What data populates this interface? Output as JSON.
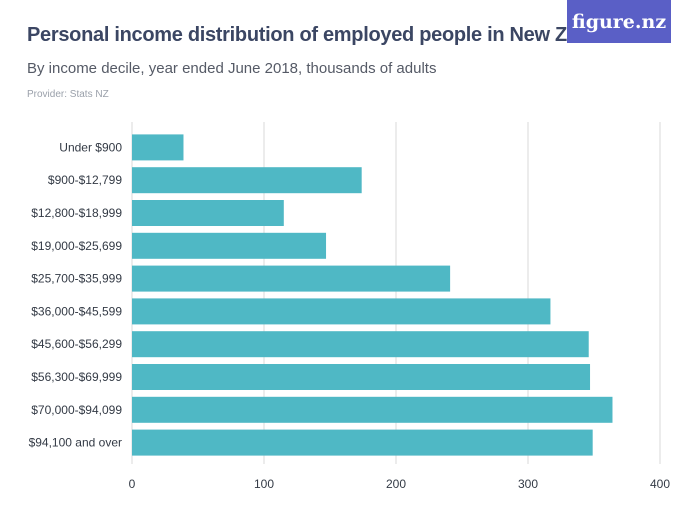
{
  "header": {
    "title": "Personal income distribution of employed people in New Zealand",
    "subtitle": "By income decile, year ended June 2018, thousands of adults",
    "provider": "Provider: Stats NZ",
    "logo_text": "figure.nz"
  },
  "colors": {
    "bar": "#4fb8c5",
    "grid": "#d9d9d9",
    "logo_bg": "#5a5fc6",
    "title": "#3b4663"
  },
  "chart_data": {
    "type": "bar",
    "orientation": "horizontal",
    "categories": [
      "Under $900",
      "$900-$12,799",
      "$12,800-$18,999",
      "$19,000-$25,699",
      "$25,700-$35,999",
      "$36,000-$45,599",
      "$45,600-$56,299",
      "$56,300-$69,999",
      "$70,000-$94,099",
      "$94,100 and over"
    ],
    "values": [
      39,
      174,
      115,
      147,
      241,
      317,
      346,
      347,
      364,
      349
    ],
    "xlim": [
      0,
      400
    ],
    "xticks": [
      0,
      100,
      200,
      300,
      400
    ],
    "grid": true,
    "title": "Personal income distribution of employed people in New Zealand",
    "subtitle": "By income decile, year ended June 2018, thousands of adults"
  }
}
